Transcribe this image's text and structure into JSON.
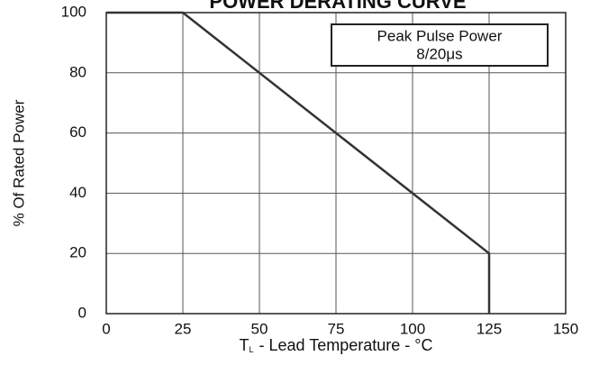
{
  "chart_data": {
    "type": "line",
    "title": "POWER DERATING CURVE",
    "ylabel": "% Of Rated Power",
    "xlabel": {
      "symbol": "T",
      "subscript": "L",
      "text": "- Lead Temperature - °C"
    },
    "annotation": [
      "Peak Pulse Power",
      "8/20μs"
    ],
    "x": [
      0,
      25,
      125,
      125
    ],
    "series": [
      {
        "color": "#333333",
        "values": [
          100,
          100,
          20,
          0
        ]
      }
    ],
    "xlim": [
      0,
      150
    ],
    "xticks": [
      0,
      25,
      50,
      75,
      100,
      125,
      150
    ],
    "ylim": [
      0,
      100
    ],
    "yticks": [
      0,
      20,
      40,
      60,
      80,
      100
    ],
    "grid": true
  }
}
